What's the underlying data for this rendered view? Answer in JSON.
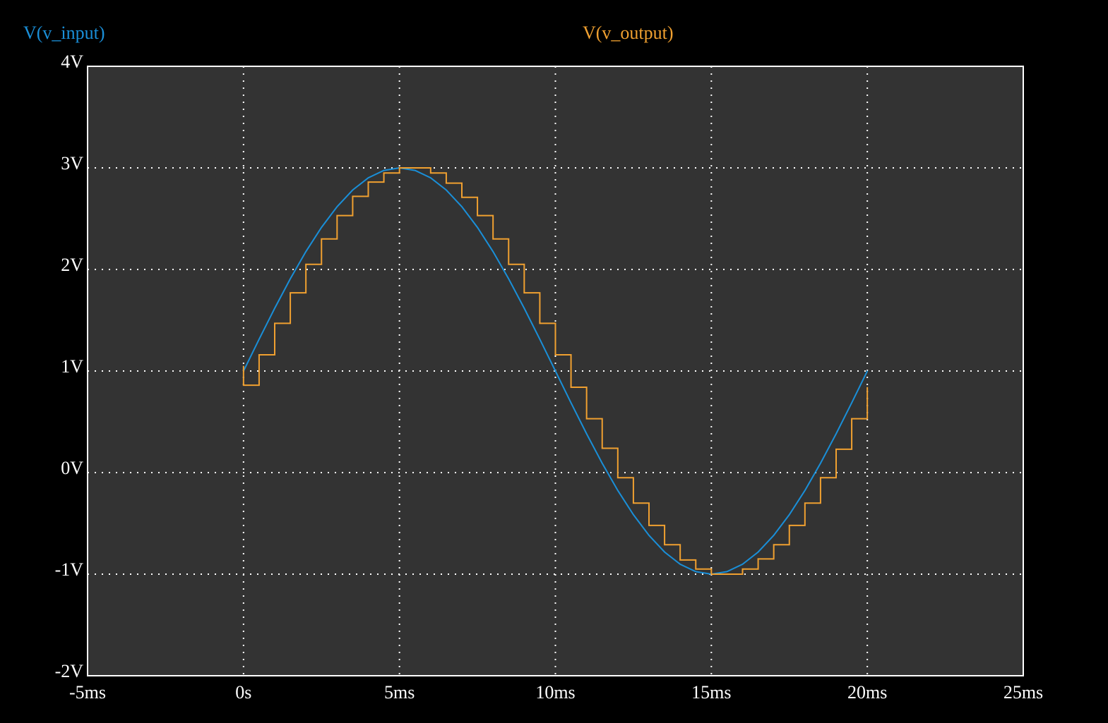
{
  "chart_data": {
    "type": "line",
    "title": "",
    "xlabel": "",
    "ylabel": "",
    "xlim": [
      -0.005,
      0.025
    ],
    "ylim": [
      -2,
      4
    ],
    "grid": true,
    "legend": "top",
    "background": "#333333",
    "page_background": "#000000",
    "grid_color": "#ffffff",
    "x_ticks": [
      {
        "value": -0.005,
        "label": "-5ms"
      },
      {
        "value": 0,
        "label": "0s"
      },
      {
        "value": 0.005,
        "label": "5ms"
      },
      {
        "value": 0.01,
        "label": "10ms"
      },
      {
        "value": 0.015,
        "label": "15ms"
      },
      {
        "value": 0.02,
        "label": "20ms"
      },
      {
        "value": 0.025,
        "label": "25ms"
      }
    ],
    "y_ticks": [
      {
        "value": 4,
        "label": "4V"
      },
      {
        "value": 3,
        "label": "3V"
      },
      {
        "value": 2,
        "label": "2V"
      },
      {
        "value": 1,
        "label": "1V"
      },
      {
        "value": 0,
        "label": "0V"
      },
      {
        "value": -1,
        "label": "-1V"
      },
      {
        "value": -2,
        "label": "-2V"
      }
    ],
    "series": [
      {
        "name": "V(v_input)",
        "color": "#1a8fd8",
        "style": "line",
        "x": [
          0,
          0.0005,
          0.001,
          0.0015,
          0.002,
          0.0025,
          0.003,
          0.0035,
          0.004,
          0.0045,
          0.005,
          0.0055,
          0.006,
          0.0065,
          0.007,
          0.0075,
          0.008,
          0.0085,
          0.009,
          0.0095,
          0.01,
          0.0105,
          0.011,
          0.0115,
          0.012,
          0.0125,
          0.013,
          0.0135,
          0.014,
          0.0145,
          0.015,
          0.0155,
          0.016,
          0.0165,
          0.017,
          0.0175,
          0.018,
          0.0185,
          0.019,
          0.0195,
          0.02
        ],
        "y": [
          1.0,
          1.313,
          1.618,
          1.908,
          2.176,
          2.414,
          2.618,
          2.782,
          2.902,
          2.975,
          3.0,
          2.975,
          2.902,
          2.782,
          2.618,
          2.414,
          2.176,
          1.908,
          1.618,
          1.313,
          1.0,
          0.687,
          0.382,
          0.092,
          -0.176,
          -0.414,
          -0.618,
          -0.782,
          -0.902,
          -0.975,
          -1.0,
          -0.975,
          -0.902,
          -0.782,
          -0.618,
          -0.414,
          -0.176,
          0.092,
          0.382,
          0.687,
          1.0
        ]
      },
      {
        "name": "V(v_output)",
        "color": "#f0a030",
        "style": "step",
        "x": [
          0,
          0.0005,
          0.001,
          0.0015,
          0.002,
          0.0025,
          0.003,
          0.0035,
          0.004,
          0.0045,
          0.005,
          0.0055,
          0.006,
          0.0065,
          0.007,
          0.0075,
          0.008,
          0.0085,
          0.009,
          0.0095,
          0.01,
          0.0105,
          0.011,
          0.0115,
          0.012,
          0.0125,
          0.013,
          0.0135,
          0.014,
          0.0145,
          0.015,
          0.0155,
          0.016,
          0.0165,
          0.017,
          0.0175,
          0.018,
          0.0185,
          0.019,
          0.0195,
          0.02
        ],
        "y": [
          0.86,
          1.16,
          1.47,
          1.77,
          2.05,
          2.3,
          2.53,
          2.72,
          2.86,
          2.95,
          3.0,
          3.0,
          2.95,
          2.85,
          2.71,
          2.53,
          2.3,
          2.05,
          1.77,
          1.47,
          1.16,
          0.84,
          0.53,
          0.24,
          -0.05,
          -0.3,
          -0.52,
          -0.71,
          -0.86,
          -0.95,
          -1.0,
          -1.0,
          -0.95,
          -0.85,
          -0.71,
          -0.52,
          -0.3,
          -0.05,
          0.23,
          0.53,
          0.84
        ]
      }
    ]
  }
}
